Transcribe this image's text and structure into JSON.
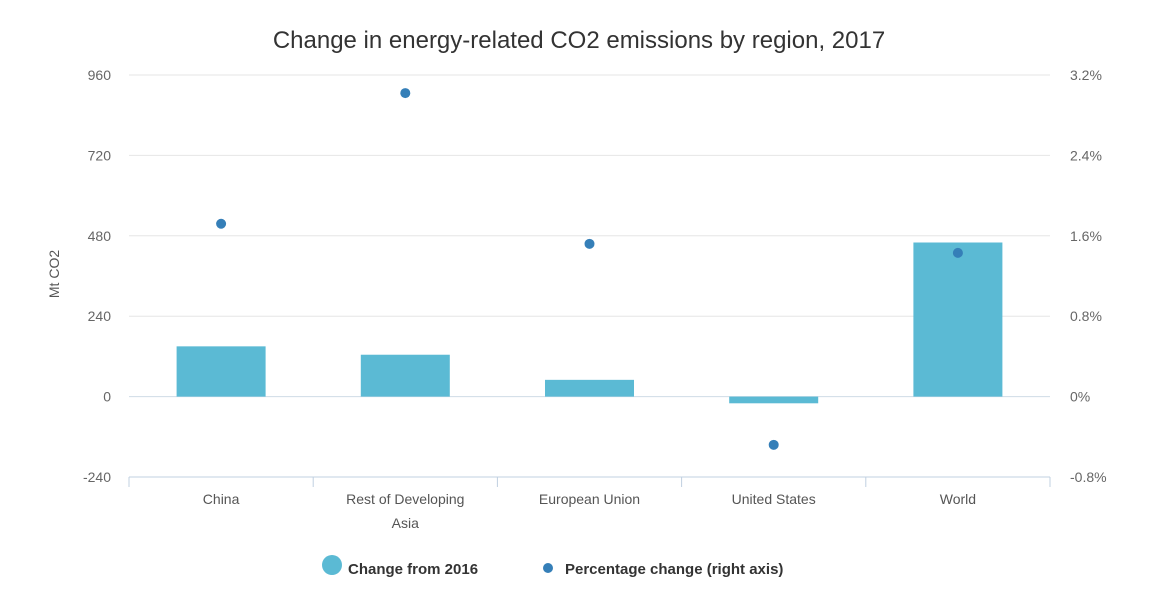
{
  "chart_data": {
    "type": "bar",
    "title": "Change in energy-related CO2 emissions by region, 2017",
    "ylabel": "Mt CO2",
    "categories": [
      [
        "China"
      ],
      [
        "Rest of Developing",
        "Asia"
      ],
      [
        "European Union"
      ],
      [
        "United States"
      ],
      [
        "World"
      ]
    ],
    "ylim": [
      -240,
      960
    ],
    "yticks": [
      960,
      720,
      480,
      240,
      0,
      -240
    ],
    "y2lim": [
      -0.8,
      3.2
    ],
    "y2ticks": [
      "3.2%",
      "2.4%",
      "1.6%",
      "0.8%",
      "0%",
      "-0.8%"
    ],
    "y2tick_values": [
      3.2,
      2.4,
      1.6,
      0.8,
      0,
      -0.8
    ],
    "series": [
      {
        "name": "Change from 2016",
        "kind": "bar",
        "axis": "left",
        "color": "#5bbad4",
        "values": [
          150,
          125,
          50,
          -20,
          460
        ]
      },
      {
        "name": "Percentage change (right axis)",
        "kind": "scatter",
        "axis": "right",
        "color": "#357fb8",
        "values": [
          1.72,
          3.02,
          1.52,
          -0.48,
          1.43
        ]
      }
    ],
    "legend": "bottom-center",
    "grid": true
  }
}
